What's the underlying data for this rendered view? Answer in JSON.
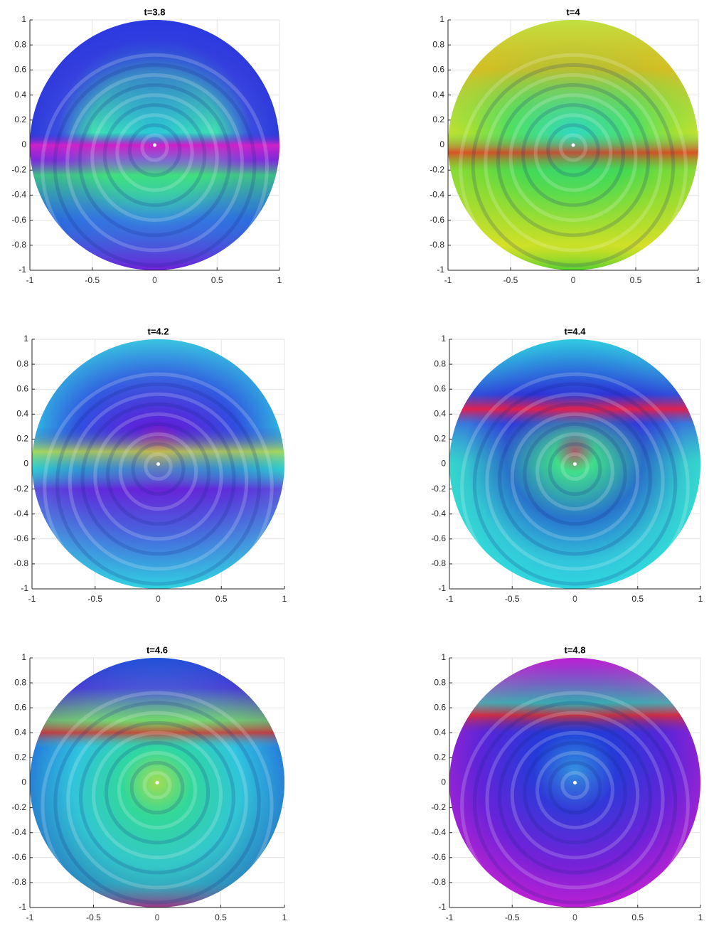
{
  "chart_data": [
    {
      "type": "surface",
      "title": "t=3.8",
      "xlim": [
        -1,
        1
      ],
      "ylim": [
        -1,
        1
      ],
      "xticks": [
        -1,
        -0.5,
        0,
        0.5,
        1
      ],
      "yticks": [
        -1,
        -0.8,
        -0.6,
        -0.4,
        -0.2,
        0,
        0.2,
        0.4,
        0.6,
        0.8,
        1
      ],
      "grid": true
    },
    {
      "type": "surface",
      "title": "t=4",
      "xlim": [
        -1,
        1
      ],
      "ylim": [
        -1,
        1
      ],
      "xticks": [
        -1,
        -0.5,
        0,
        0.5,
        1
      ],
      "yticks": [
        -1,
        -0.8,
        -0.6,
        -0.4,
        -0.2,
        0,
        0.2,
        0.4,
        0.6,
        0.8,
        1
      ],
      "grid": true
    },
    {
      "type": "surface",
      "title": "t=4.2",
      "xlim": [
        -1,
        1
      ],
      "ylim": [
        -1,
        1
      ],
      "xticks": [
        -1,
        -0.5,
        0,
        0.5,
        1
      ],
      "yticks": [
        -1,
        -0.8,
        -0.6,
        -0.4,
        -0.2,
        0,
        0.2,
        0.4,
        0.6,
        0.8,
        1
      ],
      "grid": true
    },
    {
      "type": "surface",
      "title": "t=4.4",
      "xlim": [
        -1,
        1
      ],
      "ylim": [
        -1,
        1
      ],
      "xticks": [
        -1,
        -0.5,
        0,
        0.5,
        1
      ],
      "yticks": [
        -1,
        -0.8,
        -0.6,
        -0.4,
        -0.2,
        0,
        0.2,
        0.4,
        0.6,
        0.8,
        1
      ],
      "grid": true
    },
    {
      "type": "surface",
      "title": "t=4.6",
      "xlim": [
        -1,
        1
      ],
      "ylim": [
        -1,
        1
      ],
      "xticks": [
        -1,
        -0.5,
        0,
        0.5,
        1
      ],
      "yticks": [
        -1,
        -0.8,
        -0.6,
        -0.4,
        -0.2,
        0,
        0.2,
        0.4,
        0.6,
        0.8,
        1
      ],
      "grid": true
    },
    {
      "type": "surface",
      "title": "t=4.8",
      "xlim": [
        -1,
        1
      ],
      "ylim": [
        -1,
        1
      ],
      "xticks": [
        -1,
        -0.5,
        0,
        0.5,
        1
      ],
      "yticks": [
        -1,
        -0.8,
        -0.6,
        -0.4,
        -0.2,
        0,
        0.2,
        0.4,
        0.6,
        0.8,
        1
      ],
      "grid": true
    }
  ]
}
